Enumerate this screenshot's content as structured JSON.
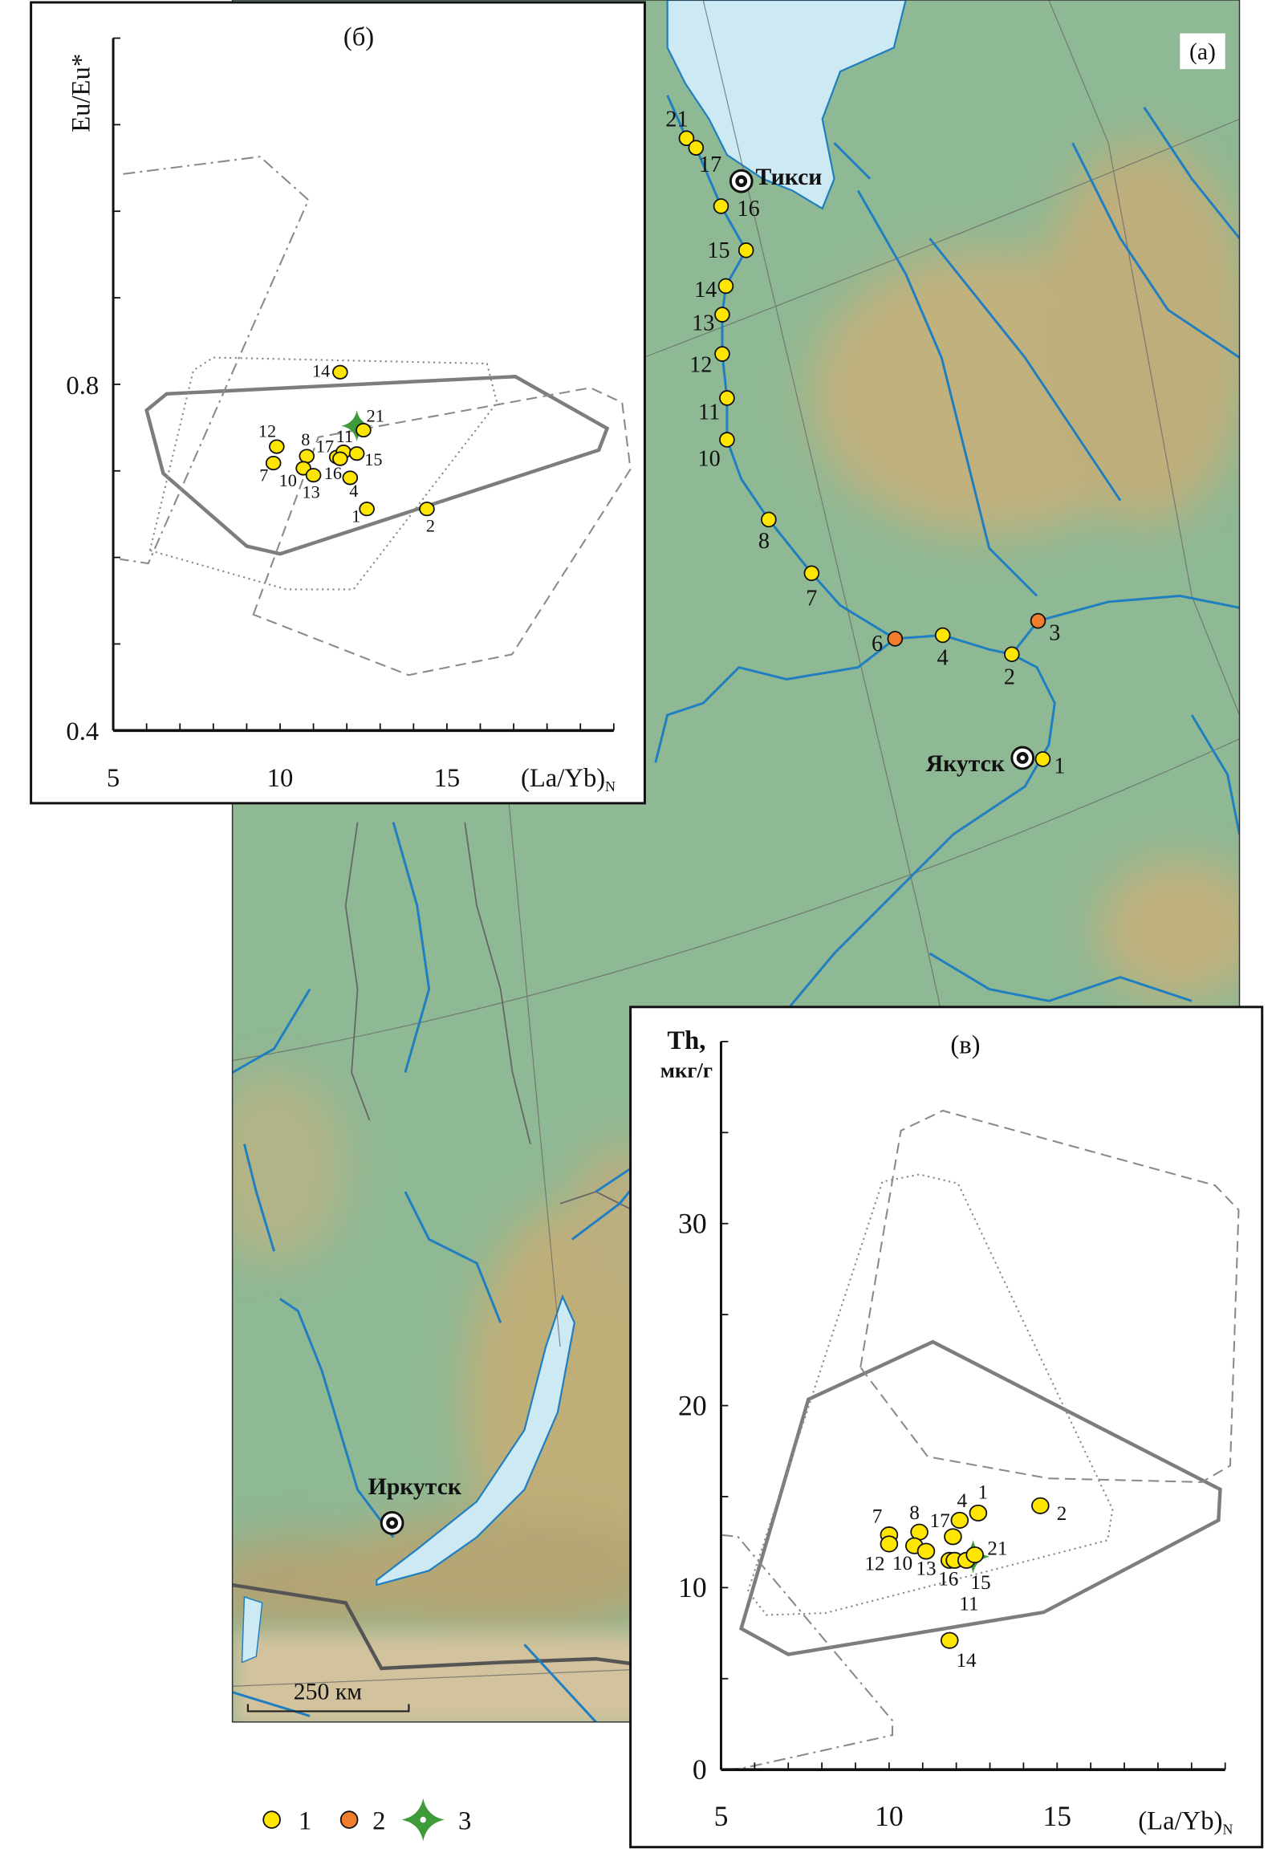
{
  "map": {
    "panel_label": "(а)",
    "cities": [
      {
        "name": "Тикси"
      },
      {
        "name": "Якутск"
      },
      {
        "name": "Иркутск"
      }
    ],
    "sites": [
      {
        "label": "21",
        "type": 1
      },
      {
        "label": "17",
        "type": 1
      },
      {
        "label": "16",
        "type": 1
      },
      {
        "label": "15",
        "type": 1
      },
      {
        "label": "14",
        "type": 1
      },
      {
        "label": "13",
        "type": 1
      },
      {
        "label": "12",
        "type": 1
      },
      {
        "label": "11",
        "type": 1
      },
      {
        "label": "10",
        "type": 1
      },
      {
        "label": "8",
        "type": 1
      },
      {
        "label": "7",
        "type": 1
      },
      {
        "label": "6",
        "type": 2
      },
      {
        "label": "4",
        "type": 1
      },
      {
        "label": "2",
        "type": 1
      },
      {
        "label": "3",
        "type": 2
      },
      {
        "label": "1",
        "type": 1
      }
    ],
    "scale_bar": "250 км",
    "colors": {
      "land": "#8fb894",
      "mountain": "#c9b07a",
      "water": "#cdeaf4",
      "river": "#1f7fc0",
      "border": "#666666"
    }
  },
  "legend": [
    {
      "symbol": "yellow-circle",
      "color": "#ffe600",
      "label": "1"
    },
    {
      "symbol": "orange-circle",
      "color": "#ef7d2c",
      "label": "2"
    },
    {
      "symbol": "green-star",
      "color": "#3f9a3a",
      "label": "3"
    }
  ],
  "chart_data": [
    {
      "type": "scatter",
      "panel_label": "(б)",
      "ylabel": "Eu/Eu*",
      "xlabel": "(La/Yb)",
      "xlabel_sub": "N",
      "xlim": [
        5,
        20
      ],
      "ylim": [
        0.4,
        1.2
      ],
      "xticks": [
        "5",
        "10",
        "15"
      ],
      "yticks": [
        "0.4",
        "0.8"
      ],
      "grid": false,
      "points": [
        {
          "label": "14",
          "x": 11.8,
          "y": 0.814
        },
        {
          "label": "21",
          "x": 12.5,
          "y": 0.747
        },
        {
          "label": "12",
          "x": 9.9,
          "y": 0.728
        },
        {
          "label": "7",
          "x": 9.8,
          "y": 0.709
        },
        {
          "label": "8",
          "x": 10.8,
          "y": 0.717
        },
        {
          "label": "10",
          "x": 10.7,
          "y": 0.703
        },
        {
          "label": "13",
          "x": 11.0,
          "y": 0.695
        },
        {
          "label": "17",
          "x": 11.7,
          "y": 0.716
        },
        {
          "label": "11",
          "x": 11.9,
          "y": 0.722
        },
        {
          "label": "15",
          "x": 12.3,
          "y": 0.72
        },
        {
          "label": "16",
          "x": 11.8,
          "y": 0.714
        },
        {
          "label": "4",
          "x": 12.1,
          "y": 0.692
        },
        {
          "label": "1",
          "x": 12.6,
          "y": 0.656
        },
        {
          "label": "2",
          "x": 14.4,
          "y": 0.656
        }
      ],
      "star": {
        "x": 12.3,
        "y": 0.752
      },
      "fields": [
        {
          "style": "solid",
          "closed": true,
          "pts": [
            [
              6.0,
              0.77
            ],
            [
              6.6,
              0.789
            ],
            [
              17.05,
              0.809
            ],
            [
              19.8,
              0.749
            ],
            [
              19.55,
              0.724
            ],
            [
              10.0,
              0.604
            ],
            [
              9.0,
              0.613
            ],
            [
              6.5,
              0.697
            ]
          ]
        },
        {
          "style": "dotted",
          "closed": true,
          "pts": [
            [
              6.1,
              0.608
            ],
            [
              7.4,
              0.816
            ],
            [
              8.0,
              0.831
            ],
            [
              16.2,
              0.824
            ],
            [
              16.5,
              0.779
            ],
            [
              12.2,
              0.563
            ],
            [
              10.2,
              0.563
            ]
          ]
        },
        {
          "style": "dashdot",
          "closed": false,
          "pts": [
            [
              5.3,
              1.043
            ],
            [
              9.4,
              1.063
            ],
            [
              10.85,
              1.013
            ],
            [
              6.05,
              0.593
            ],
            [
              5.2,
              0.598
            ]
          ]
        },
        {
          "style": "dashed",
          "closed": true,
          "pts": [
            [
              9.2,
              0.534
            ],
            [
              11.15,
              0.739
            ],
            [
              19.3,
              0.796
            ],
            [
              20.25,
              0.779
            ],
            [
              20.5,
              0.702
            ],
            [
              16.95,
              0.488
            ],
            [
              13.85,
              0.464
            ]
          ]
        }
      ]
    },
    {
      "type": "scatter",
      "panel_label": "(в)",
      "ylabel": "Th,",
      "ylabel_unit": "мкг/г",
      "xlabel": "(La/Yb)",
      "xlabel_sub": "N",
      "xlim": [
        5,
        20
      ],
      "ylim": [
        0,
        40
      ],
      "xticks": [
        "5",
        "10",
        "15"
      ],
      "yticks": [
        "0",
        "10",
        "20",
        "30"
      ],
      "grid": false,
      "points": [
        {
          "label": "7",
          "x": 10.0,
          "y": 12.9
        },
        {
          "label": "12",
          "x": 10.0,
          "y": 12.4
        },
        {
          "label": "8",
          "x": 10.9,
          "y": 13.05
        },
        {
          "label": "10",
          "x": 10.75,
          "y": 12.3
        },
        {
          "label": "13",
          "x": 11.1,
          "y": 12.0
        },
        {
          "label": "17",
          "x": 11.9,
          "y": 12.8
        },
        {
          "label": "4",
          "x": 12.1,
          "y": 13.7
        },
        {
          "label": "1",
          "x": 12.65,
          "y": 14.1
        },
        {
          "label": "2",
          "x": 14.5,
          "y": 14.5
        },
        {
          "label": "16",
          "x": 11.8,
          "y": 11.5
        },
        {
          "label": "11",
          "x": 11.95,
          "y": 11.5
        },
        {
          "label": "15",
          "x": 12.3,
          "y": 11.5
        },
        {
          "label": "21",
          "x": 12.55,
          "y": 11.8
        },
        {
          "label": "14",
          "x": 11.8,
          "y": 7.1
        }
      ],
      "star": {
        "x": 12.5,
        "y": 11.7
      },
      "fields": [
        {
          "style": "solid",
          "closed": true,
          "pts": [
            [
              5.6,
              7.75
            ],
            [
              7.6,
              20.35
            ],
            [
              11.3,
              23.5
            ],
            [
              19.85,
              15.4
            ],
            [
              19.8,
              13.7
            ],
            [
              14.6,
              8.65
            ],
            [
              7.0,
              6.33
            ]
          ]
        },
        {
          "style": "dashed",
          "closed": true,
          "pts": [
            [
              9.15,
              22.1
            ],
            [
              10.35,
              35.1
            ],
            [
              11.6,
              36.2
            ],
            [
              19.7,
              32.1
            ],
            [
              20.4,
              30.75
            ],
            [
              20.15,
              16.7
            ],
            [
              19.3,
              15.8
            ],
            [
              14.75,
              16.0
            ],
            [
              11.15,
              17.2
            ]
          ]
        },
        {
          "style": "dotted",
          "closed": true,
          "pts": [
            [
              5.8,
              9.8
            ],
            [
              9.8,
              32.3
            ],
            [
              10.9,
              32.7
            ],
            [
              12.05,
              32.2
            ],
            [
              16.65,
              14.3
            ],
            [
              16.5,
              12.6
            ],
            [
              8.1,
              8.6
            ],
            [
              6.35,
              8.5
            ]
          ]
        },
        {
          "style": "dashdot",
          "closed": false,
          "pts": [
            [
              5.0,
              12.9
            ],
            [
              5.5,
              12.8
            ],
            [
              10.1,
              2.7
            ],
            [
              10.1,
              1.9
            ],
            [
              5.6,
              0.06
            ],
            [
              5.0,
              0.0
            ]
          ]
        }
      ]
    }
  ]
}
